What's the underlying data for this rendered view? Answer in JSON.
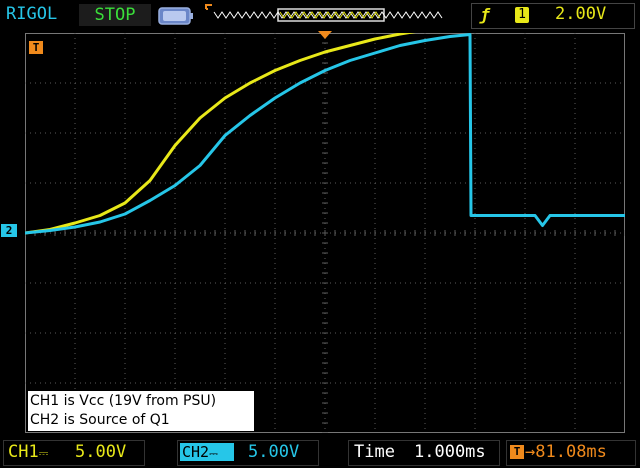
{
  "top_bar": {
    "brand": "RIGOL",
    "status": "STOP",
    "trigger_channel": "1",
    "trigger_level": "2.00V"
  },
  "markers": {
    "time_marker": "T",
    "channel_marker": "2"
  },
  "annotation": {
    "line1": "CH1 is Vcc (19V from PSU)",
    "line2": "CH2 is Source of Q1"
  },
  "bottom_bar": {
    "ch1_label": "CH1",
    "ch1_scale": "5.00V",
    "ch2_label": "CH2",
    "ch2_scale": "5.00V",
    "time_label": "Time",
    "time_scale": "1.000ms",
    "trigger_offset": "81.08ms"
  },
  "colors": {
    "ch1": "#e8e819",
    "ch2": "#26c6e8",
    "trigger": "#f08a1c",
    "grid": "#5a5a5a"
  },
  "chart_data": {
    "type": "line",
    "x_divisions": 12,
    "y_divisions": 8,
    "series": [
      {
        "name": "CH1",
        "x": [
          0,
          0.5,
          1,
          1.5,
          2,
          2.5,
          3,
          3.5,
          4,
          4.5,
          5,
          5.5,
          6,
          6.5,
          7,
          7.5,
          8,
          8.5,
          9,
          9.5,
          10,
          10.5,
          11,
          11.5,
          12
        ],
        "y": [
          4.0,
          4.07,
          4.2,
          4.35,
          4.6,
          5.05,
          5.75,
          6.3,
          6.7,
          7.0,
          7.25,
          7.45,
          7.62,
          7.75,
          7.88,
          7.98,
          8.06,
          8.14,
          8.2,
          8.26,
          8.31,
          8.35,
          8.38,
          8.42,
          8.45
        ]
      },
      {
        "name": "CH2",
        "x": [
          0,
          0.5,
          1,
          1.5,
          2,
          2.5,
          3,
          3.5,
          4,
          4.5,
          5,
          5.5,
          6,
          6.5,
          7,
          7.5,
          8,
          8.5,
          8.9,
          8.92,
          9.5,
          10.2,
          10.35,
          10.5,
          11,
          11.5,
          12
        ],
        "y": [
          4.0,
          4.05,
          4.12,
          4.22,
          4.38,
          4.65,
          4.95,
          5.35,
          5.95,
          6.35,
          6.7,
          7.0,
          7.25,
          7.45,
          7.6,
          7.75,
          7.85,
          7.93,
          7.97,
          4.35,
          4.35,
          4.35,
          4.15,
          4.35,
          4.35,
          4.35,
          4.35
        ]
      }
    ]
  }
}
